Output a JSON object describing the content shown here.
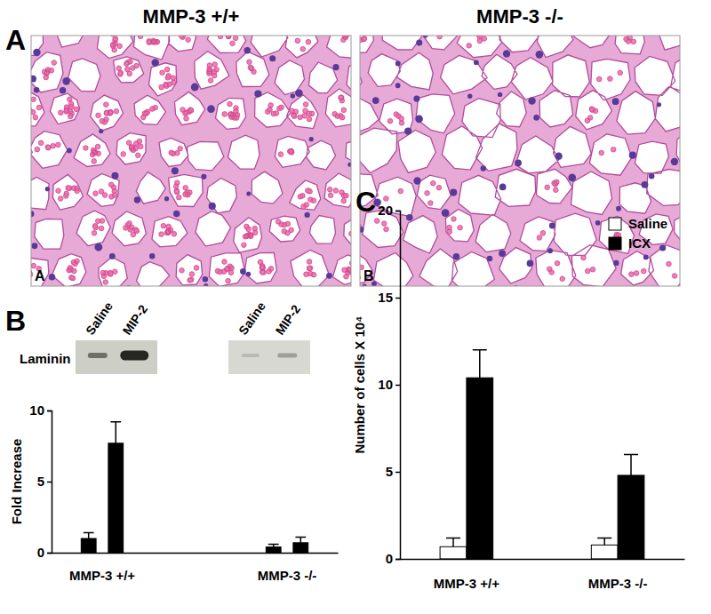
{
  "figure": {
    "panel_a": {
      "label": "A",
      "images": [
        {
          "title": "MMP-3 +/+",
          "label": "A"
        },
        {
          "title": "MMP-3 -/-",
          "label": "B"
        }
      ]
    },
    "panel_b": {
      "label": "B",
      "blot": {
        "label": "Laminin",
        "groups": [
          [
            "Saline",
            "MIP-2"
          ],
          [
            "Saline",
            "MIP-2"
          ]
        ]
      }
    },
    "panel_c": {
      "label": "C"
    }
  },
  "chart_data": [
    {
      "type": "bar",
      "categories": [
        "MMP-3 +/+",
        "MMP-3 -/-"
      ],
      "y_label": "Fold Increase",
      "ylim": [
        0,
        10
      ],
      "yticks": [
        0,
        5,
        10
      ],
      "grid": false,
      "series": [
        {
          "color": "#000000",
          "values": [
            1.0,
            0.4
          ],
          "errors": [
            0.4,
            0.2
          ]
        },
        {
          "color": "#000000",
          "values": [
            7.7,
            0.7
          ],
          "errors": [
            1.5,
            0.4
          ]
        }
      ]
    },
    {
      "type": "bar",
      "categories": [
        "MMP-3 +/+",
        "MMP-3 -/-"
      ],
      "y_label": "Number of cells X 10⁴",
      "ylim": [
        0,
        20
      ],
      "yticks": [
        0,
        5,
        10,
        15,
        20
      ],
      "grid": false,
      "legend": "top-right",
      "series": [
        {
          "name": "Saline",
          "color": "#ffffff",
          "values": [
            0.7,
            0.8
          ],
          "errors": [
            0.5,
            0.4
          ]
        },
        {
          "name": "ICX",
          "color": "#000000",
          "values": [
            10.4,
            4.8
          ],
          "errors": [
            1.6,
            1.2
          ]
        }
      ]
    }
  ]
}
